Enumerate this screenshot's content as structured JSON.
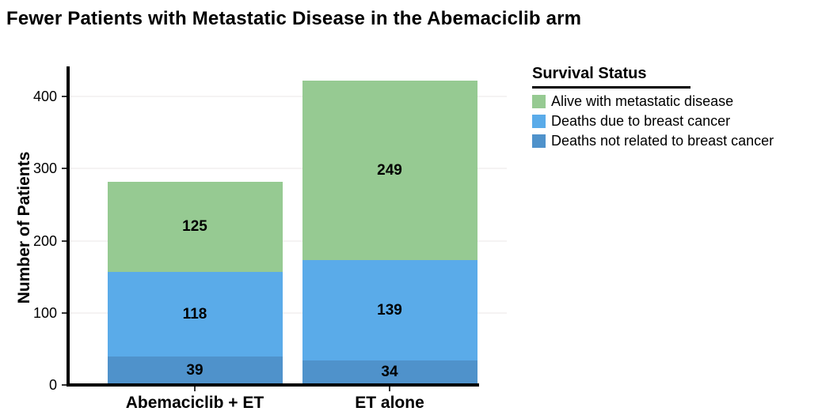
{
  "title": "Fewer Patients with Metastatic Disease in the Abemaciclib arm",
  "chart_data": {
    "type": "bar",
    "stacked": true,
    "title": "Fewer Patients with Metastatic Disease in the Abemaciclib arm",
    "categories": [
      "Abemaciclib + ET",
      "ET alone"
    ],
    "series": [
      {
        "name": "Deaths not related to breast cancer",
        "color": "#4f92cb",
        "values": [
          39,
          34
        ]
      },
      {
        "name": "Deaths due to breast cancer",
        "color": "#5aabe9",
        "values": [
          118,
          139
        ]
      },
      {
        "name": "Alive with metastatic disease",
        "color": "#96ca92",
        "values": [
          125,
          249
        ]
      }
    ],
    "totals": [
      282,
      422
    ],
    "xlabel": "",
    "ylabel": "Number of Patients",
    "yticks": [
      0,
      100,
      200,
      300,
      400
    ],
    "ylim": [
      0,
      440
    ],
    "grid": "faint horizontal lines at y ticks",
    "legend": {
      "title": "Survival Status",
      "position": "right",
      "entries": [
        {
          "label": "Alive with metastatic disease",
          "color": "#96ca92"
        },
        {
          "label": "Deaths due to breast cancer",
          "color": "#5aabe9"
        },
        {
          "label": "Deaths not related to breast cancer",
          "color": "#4f92cb"
        }
      ]
    },
    "colors": {
      "axis": "#000000",
      "text": "#000000",
      "gridline": "#f5f3f3",
      "background": "#ffffff"
    }
  }
}
